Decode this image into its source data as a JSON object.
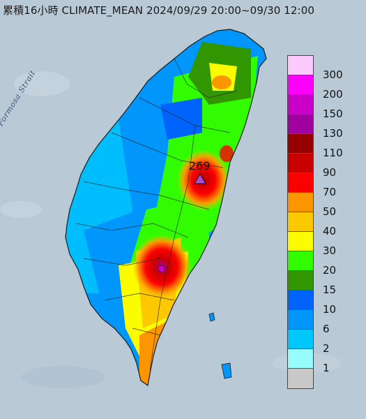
{
  "title": "累積16小時 CLIMATE_MEAN 2024/09/29 20:00~09/30 12:00",
  "map": {
    "water_label": "Formosa Strait",
    "max_value_label": "269",
    "colors": {
      "sea": "#b9c9d6",
      "outline": "#1c1c1c",
      "max_marker": "#b04ad8"
    }
  },
  "legend": [
    {
      "label": "300",
      "color": "#fccafc"
    },
    {
      "label": "200",
      "color": "#fc00fc"
    },
    {
      "label": "150",
      "color": "#c800c8"
    },
    {
      "label": "130",
      "color": "#a000a0"
    },
    {
      "label": "110",
      "color": "#960000"
    },
    {
      "label": "90",
      "color": "#c80000"
    },
    {
      "label": "70",
      "color": "#fc0000"
    },
    {
      "label": "50",
      "color": "#fc9600"
    },
    {
      "label": "40",
      "color": "#fcc800"
    },
    {
      "label": "30",
      "color": "#fcfc00"
    },
    {
      "label": "20",
      "color": "#32fc00"
    },
    {
      "label": "15",
      "color": "#329600"
    },
    {
      "label": "10",
      "color": "#0064fc"
    },
    {
      "label": "6",
      "color": "#0096fc"
    },
    {
      "label": "2",
      "color": "#00c8fc"
    },
    {
      "label": "1",
      "color": "#96fcfc"
    },
    {
      "label": "",
      "color": "#c8c8c8"
    }
  ]
}
